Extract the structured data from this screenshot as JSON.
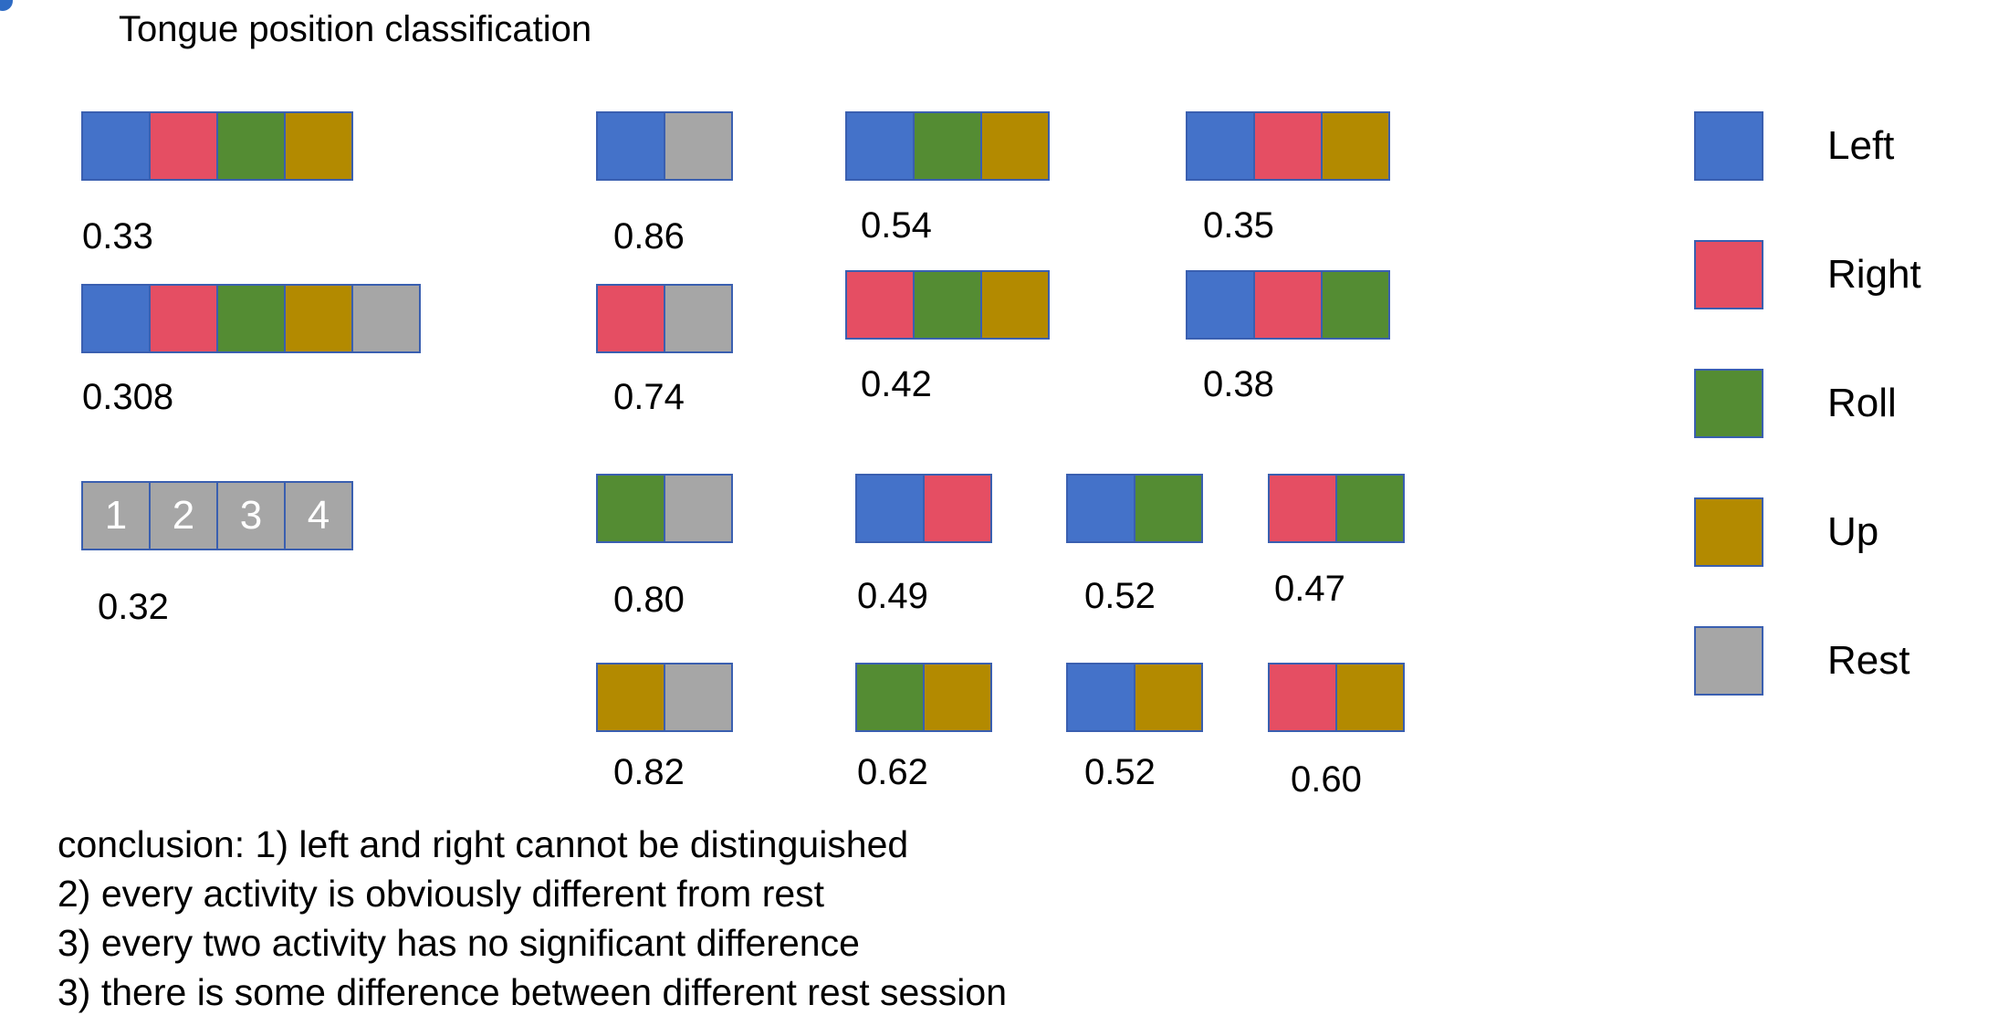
{
  "title": "Tongue position classification",
  "colors": {
    "left": "#4472c9",
    "right": "#e54e63",
    "roll": "#548c33",
    "up": "#b38a00",
    "rest": "#a6a6a6"
  },
  "legend": [
    {
      "key": "left",
      "label": "Left"
    },
    {
      "key": "right",
      "label": "Right"
    },
    {
      "key": "roll",
      "label": "Roll"
    },
    {
      "key": "up",
      "label": "Up"
    },
    {
      "key": "rest",
      "label": "Rest"
    }
  ],
  "groups": [
    {
      "classes": [
        "left",
        "right",
        "roll",
        "up"
      ],
      "accuracy": "0.33"
    },
    {
      "classes": [
        "left",
        "right",
        "roll",
        "up",
        "rest"
      ],
      "accuracy": "0.308"
    },
    {
      "classes": [
        "rest",
        "rest",
        "rest",
        "rest"
      ],
      "labels": [
        "1",
        "2",
        "3",
        "4"
      ],
      "accuracy": "0.32"
    },
    {
      "classes": [
        "left",
        "rest"
      ],
      "accuracy": "0.86"
    },
    {
      "classes": [
        "right",
        "rest"
      ],
      "accuracy": "0.74"
    },
    {
      "classes": [
        "roll",
        "rest"
      ],
      "accuracy": "0.80"
    },
    {
      "classes": [
        "up",
        "rest"
      ],
      "accuracy": "0.82"
    },
    {
      "classes": [
        "left",
        "roll",
        "up"
      ],
      "accuracy": "0.54"
    },
    {
      "classes": [
        "right",
        "roll",
        "up"
      ],
      "accuracy": "0.42"
    },
    {
      "classes": [
        "left",
        "right",
        "up"
      ],
      "accuracy": "0.35"
    },
    {
      "classes": [
        "left",
        "right",
        "roll"
      ],
      "accuracy": "0.38"
    },
    {
      "classes": [
        "left",
        "right"
      ],
      "accuracy": "0.49"
    },
    {
      "classes": [
        "left",
        "roll"
      ],
      "accuracy": "0.52"
    },
    {
      "classes": [
        "right",
        "roll"
      ],
      "accuracy": "0.47"
    },
    {
      "classes": [
        "roll",
        "up"
      ],
      "accuracy": "0.62"
    },
    {
      "classes": [
        "left",
        "up"
      ],
      "accuracy": "0.52"
    },
    {
      "classes": [
        "right",
        "up"
      ],
      "accuracy": "0.60"
    }
  ],
  "conclusion": [
    "conclusion: 1) left and right cannot be distinguished",
    "2) every activity is obviously different from rest",
    "3) every two activity has no significant difference",
    "3) there is some difference between different rest session"
  ]
}
